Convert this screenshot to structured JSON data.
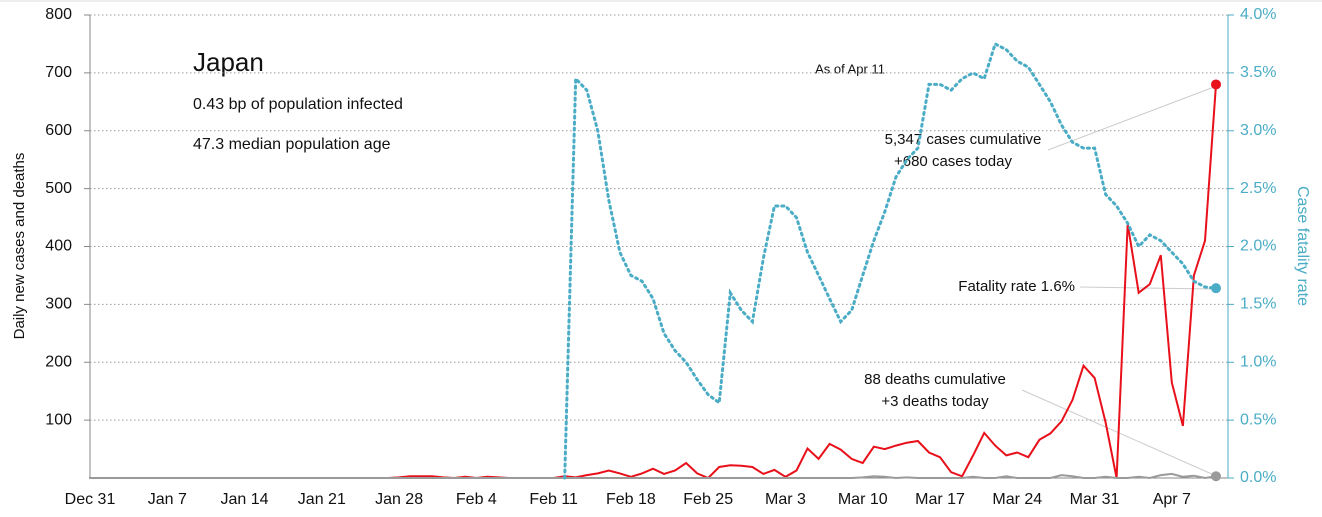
{
  "chart_data": {
    "type": "line",
    "title": "Japan",
    "annotations": [
      "0.43 bp of population infected",
      "47.3 median population age",
      "As of Apr 11",
      "5,347 cases cumulative",
      "+680 cases today",
      "Fatality rate 1.6%",
      "88 deaths cumulative",
      "+3 deaths today"
    ],
    "ylabel": "Daily new cases and deaths",
    "y2label": "Case fatality rate",
    "categories": [
      "Dec 31",
      null,
      null,
      null,
      null,
      null,
      null,
      "Jan 7",
      null,
      null,
      null,
      null,
      null,
      null,
      "Jan 14",
      null,
      null,
      null,
      null,
      null,
      null,
      "Jan 21",
      null,
      null,
      null,
      null,
      null,
      null,
      "Jan 28",
      null,
      null,
      null,
      null,
      null,
      null,
      "Feb 4",
      null,
      null,
      null,
      null,
      null,
      null,
      "Feb 11",
      null,
      null,
      null,
      null,
      null,
      null,
      "Feb 18",
      null,
      null,
      null,
      null,
      null,
      null,
      "Feb 25",
      null,
      null,
      null,
      null,
      null,
      null,
      "Mar 3",
      null,
      null,
      null,
      null,
      null,
      null,
      "Mar 10",
      null,
      null,
      null,
      null,
      null,
      null,
      "Mar 17",
      null,
      null,
      null,
      null,
      null,
      null,
      "Mar 24",
      null,
      null,
      null,
      null,
      null,
      null,
      "Mar 31",
      null,
      null,
      null,
      null,
      null,
      null,
      "Apr 7",
      null,
      null,
      null,
      null
    ],
    "series": [
      {
        "color": "#e8101a",
        "axis": "y",
        "style": "solid",
        "values": [
          0,
          0,
          0,
          0,
          0,
          0,
          0,
          0,
          0,
          0,
          0,
          0,
          0,
          0,
          0,
          0,
          0,
          0,
          0,
          0,
          0,
          0,
          0,
          0,
          0,
          0,
          0,
          0,
          1,
          3,
          3,
          3,
          1,
          0,
          2,
          0,
          2,
          1,
          0,
          0,
          0,
          0,
          0,
          3,
          1,
          5,
          8,
          13,
          8,
          2,
          8,
          16,
          7,
          13,
          26,
          8,
          0,
          19,
          22,
          21,
          19,
          7,
          14,
          2,
          13,
          51,
          33,
          59,
          49,
          33,
          26,
          54,
          50,
          56,
          61,
          64,
          44,
          36,
          10,
          3,
          39,
          78,
          56,
          39,
          44,
          36,
          66,
          77,
          98,
          135,
          194,
          173,
          96,
          0,
          439,
          320,
          335,
          385,
          165,
          90,
          350,
          410,
          680
        ]
      },
      {
        "color": "#9a9a9a",
        "axis": "y",
        "style": "solid",
        "values": [
          0,
          0,
          0,
          0,
          0,
          0,
          0,
          0,
          0,
          0,
          0,
          0,
          0,
          0,
          0,
          0,
          0,
          0,
          0,
          0,
          0,
          0,
          0,
          0,
          0,
          0,
          0,
          0,
          0,
          0,
          0,
          0,
          0,
          0,
          0,
          0,
          0,
          0,
          0,
          0,
          0,
          0,
          0,
          0,
          0,
          0,
          0,
          0,
          0,
          0,
          0,
          0,
          0,
          0,
          0,
          0,
          0,
          0,
          0,
          0,
          0,
          0,
          0,
          0,
          0,
          0,
          0,
          0,
          0,
          0,
          1,
          3,
          2,
          0,
          1,
          0,
          0,
          0,
          0,
          0,
          2,
          0,
          0,
          3,
          0,
          0,
          0,
          0,
          5,
          3,
          0,
          0,
          2,
          0,
          0,
          2,
          0,
          5,
          7,
          2,
          4,
          0,
          3
        ]
      },
      {
        "color": "#4bacc6",
        "axis": "y2",
        "style": "dotted",
        "values": [
          null,
          null,
          null,
          null,
          null,
          null,
          null,
          null,
          null,
          null,
          null,
          null,
          null,
          null,
          null,
          null,
          null,
          null,
          null,
          null,
          null,
          null,
          null,
          null,
          null,
          null,
          null,
          null,
          null,
          null,
          null,
          null,
          null,
          null,
          null,
          null,
          null,
          null,
          null,
          null,
          null,
          null,
          null,
          0,
          3.45,
          3.35,
          3.0,
          2.4,
          1.95,
          1.75,
          1.7,
          1.55,
          1.25,
          1.1,
          1.0,
          0.85,
          0.72,
          0.65,
          1.6,
          1.45,
          1.35,
          1.9,
          2.35,
          2.35,
          2.25,
          1.95,
          1.75,
          1.55,
          1.35,
          1.45,
          1.75,
          2.05,
          2.3,
          2.6,
          2.75,
          2.85,
          3.4,
          3.4,
          3.35,
          3.45,
          3.5,
          3.45,
          3.75,
          3.7,
          3.6,
          3.55,
          3.4,
          3.25,
          3.05,
          2.9,
          2.85,
          2.85,
          2.45,
          2.35,
          2.2,
          2.0,
          2.1,
          2.05,
          1.95,
          1.85,
          1.7,
          1.65,
          1.64
        ]
      }
    ],
    "ylim": [
      0,
      800
    ],
    "yticks": [
      100,
      200,
      300,
      400,
      500,
      600,
      700,
      800
    ],
    "y2lim": [
      0,
      4
    ],
    "y2ticks": [
      {
        "value": 0,
        "label": "0.0%"
      },
      {
        "value": 0.5,
        "label": "0.5%"
      },
      {
        "value": 1,
        "label": "1.0%"
      },
      {
        "value": 1.5,
        "label": "1.5%"
      },
      {
        "value": 2,
        "label": "2.0%"
      },
      {
        "value": 2.5,
        "label": "2.5%"
      },
      {
        "value": 3,
        "label": "3.0%"
      },
      {
        "value": 3.5,
        "label": "3.5%"
      },
      {
        "value": 4,
        "label": "4.0%"
      }
    ],
    "grid": true
  }
}
